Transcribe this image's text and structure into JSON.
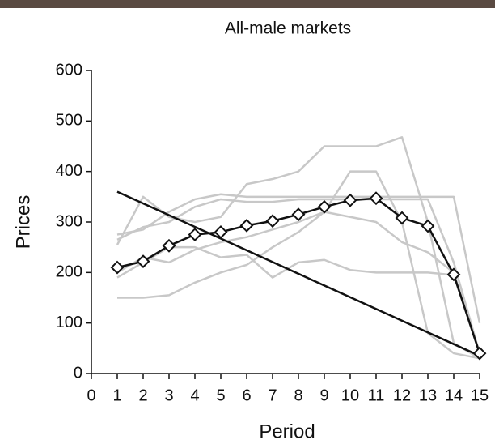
{
  "chart_data": {
    "type": "line",
    "title": "All-male markets",
    "x_label": "Period",
    "y_label": "Prices",
    "x": [
      1,
      2,
      3,
      4,
      5,
      6,
      7,
      8,
      9,
      10,
      11,
      12,
      13,
      14,
      15
    ],
    "xlim": [
      0,
      15
    ],
    "xticks": [
      0,
      1,
      2,
      3,
      4,
      5,
      6,
      7,
      8,
      9,
      10,
      11,
      12,
      13,
      14,
      15
    ],
    "ylim": [
      0,
      600
    ],
    "yticks": [
      0,
      100,
      200,
      300,
      400,
      500,
      600
    ],
    "series": [
      {
        "color": "#c8c8c8",
        "values": [
          150,
          150,
          155,
          180,
          200,
          215,
          250,
          280,
          320,
          400,
          400,
          300,
          80,
          40,
          30
        ]
      },
      {
        "color": "#c8c8c8",
        "values": [
          275,
          285,
          320,
          345,
          355,
          350,
          350,
          350,
          350,
          350,
          350,
          350,
          350,
          350,
          100
        ]
      },
      {
        "color": "#c8c8c8",
        "values": [
          190,
          220,
          250,
          250,
          230,
          235,
          190,
          220,
          225,
          205,
          200,
          200,
          200,
          195,
          40
        ]
      },
      {
        "color": "#c8c8c8",
        "values": [
          255,
          350,
          310,
          300,
          310,
          375,
          385,
          400,
          450,
          450,
          450,
          468,
          300,
          60,
          30
        ]
      },
      {
        "color": "#c8c8c8",
        "values": [
          200,
          230,
          220,
          245,
          260,
          270,
          285,
          300,
          320,
          310,
          300,
          260,
          240,
          200,
          40
        ]
      },
      {
        "color": "#c8c8c8",
        "values": [
          265,
          290,
          300,
          330,
          345,
          340,
          340,
          345,
          345,
          345,
          345,
          345,
          345,
          220,
          40
        ]
      },
      {
        "color": "#111111",
        "x": [
          1,
          15
        ],
        "values": [
          360,
          35
        ]
      },
      {
        "color": "#111111",
        "marker": "diamond",
        "values": [
          210,
          222,
          253,
          275,
          280,
          293,
          302,
          315,
          330,
          343,
          347,
          308,
          292,
          196,
          40
        ]
      }
    ]
  }
}
